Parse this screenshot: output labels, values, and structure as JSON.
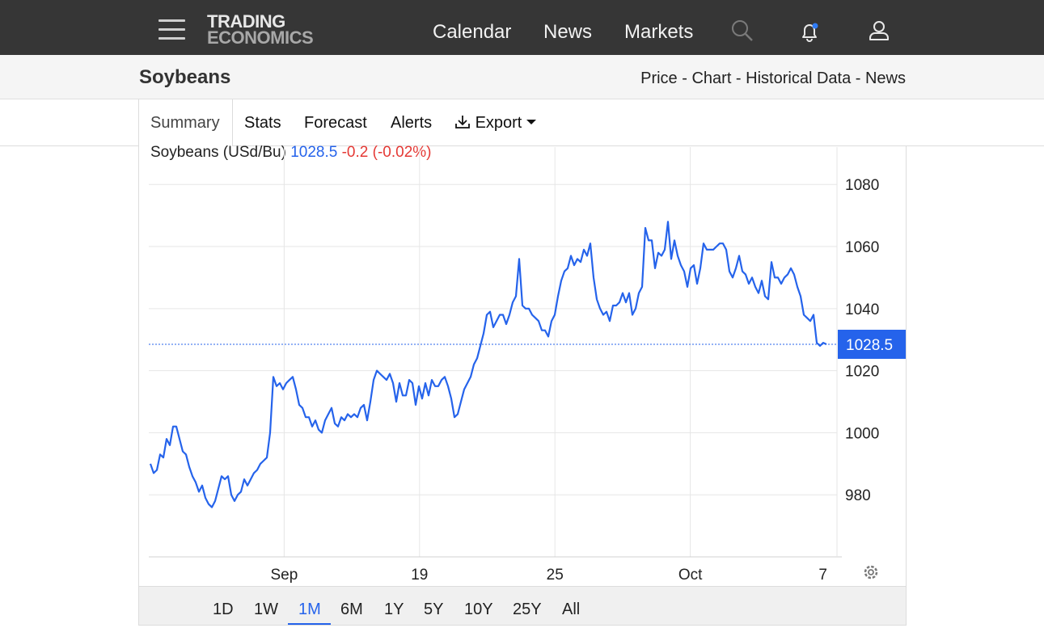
{
  "header": {
    "logo_line1": "TRADING",
    "logo_line2": "ECONOMICS",
    "nav": [
      "Calendar",
      "News",
      "Markets"
    ],
    "icons": [
      "menu-icon",
      "search-icon",
      "bell-icon",
      "user-icon"
    ]
  },
  "subheader": {
    "title": "Soybeans",
    "links": [
      "Price",
      "Chart",
      "Historical Data",
      "News"
    ],
    "separator": " - "
  },
  "tabs": {
    "summary": "Summary",
    "stats": "Stats",
    "forecast": "Forecast",
    "alerts": "Alerts",
    "export": "Export"
  },
  "chart_legend": {
    "name": "Soybeans (USd/Bu)",
    "price": "1028.5",
    "change": "-0.2 (-0.02%)"
  },
  "ranges": [
    "1D",
    "1W",
    "1M",
    "6M",
    "1Y",
    "5Y",
    "10Y",
    "25Y",
    "All"
  ],
  "active_range": "1M",
  "colors": {
    "line": "#2563eb",
    "badge": "#2563eb",
    "change_negative": "#e53935",
    "topbar": "#363636"
  },
  "chart_data": {
    "type": "line",
    "title": "",
    "series": [
      {
        "name": "Soybeans (USd/Bu)",
        "values": [
          990,
          987,
          988,
          993,
          992,
          998,
          996,
          1002,
          1002,
          998,
          994,
          993,
          989,
          986,
          984,
          981,
          983,
          979,
          977,
          976,
          978,
          982,
          986,
          985,
          986,
          980,
          978,
          980,
          981,
          985,
          983,
          985,
          987,
          988,
          990,
          991,
          992,
          1000,
          1018,
          1015,
          1016,
          1014,
          1016,
          1017,
          1018,
          1014,
          1009,
          1008,
          1005,
          1005,
          1002,
          1004,
          1001,
          1000,
          1004,
          1006,
          1008,
          1003,
          1002,
          1005,
          1004,
          1006,
          1005,
          1006,
          1005,
          1008,
          1009,
          1004,
          1010,
          1017,
          1020,
          1019,
          1018,
          1017,
          1019,
          1016,
          1010,
          1016,
          1012,
          1012,
          1017,
          1016,
          1009,
          1015,
          1011,
          1016,
          1012,
          1017,
          1015,
          1015,
          1017,
          1018,
          1015,
          1011,
          1005,
          1006,
          1010,
          1014,
          1016,
          1018,
          1022,
          1024,
          1028,
          1032,
          1038,
          1039,
          1034,
          1036,
          1038,
          1038,
          1035,
          1038,
          1042,
          1044,
          1056,
          1041,
          1040,
          1040,
          1038,
          1037,
          1036,
          1033,
          1033,
          1031,
          1036,
          1038,
          1044,
          1049,
          1052,
          1053,
          1057,
          1054,
          1056,
          1055,
          1059,
          1057,
          1061,
          1050,
          1043,
          1040,
          1038,
          1039,
          1036,
          1041,
          1041,
          1042,
          1045,
          1042,
          1045,
          1038,
          1040,
          1045,
          1047,
          1066,
          1062,
          1062,
          1053,
          1058,
          1057,
          1059,
          1068,
          1056,
          1062,
          1057,
          1054,
          1052,
          1047,
          1053,
          1054,
          1048,
          1053,
          1061,
          1059,
          1059,
          1059,
          1060,
          1061,
          1061,
          1059,
          1052,
          1050,
          1053,
          1057,
          1052,
          1051,
          1048,
          1050,
          1047,
          1045,
          1049,
          1044,
          1043,
          1055,
          1050,
          1050,
          1048,
          1050,
          1051,
          1053,
          1051,
          1047,
          1044,
          1038,
          1037,
          1036,
          1038,
          1029,
          1028,
          1029,
          1028.5
        ]
      }
    ],
    "x_ticks": [
      "Sep",
      "19",
      "25",
      "Oct",
      "7"
    ],
    "y_ticks": [
      980,
      1000,
      1020,
      1040,
      1060,
      1080
    ],
    "ylim": [
      960,
      1091
    ],
    "current_value": 1028.5,
    "grid": true,
    "legend": "top-left"
  }
}
